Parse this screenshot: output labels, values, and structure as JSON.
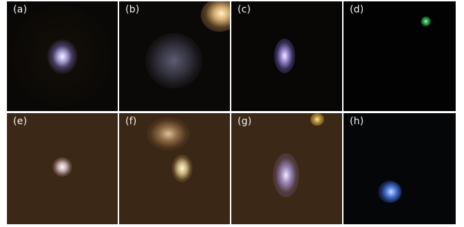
{
  "panels": [
    {
      "id": "a",
      "label": "(a)",
      "background": "#0a0806",
      "sources": [
        {
          "shape": "compact-bluish-white"
        }
      ]
    },
    {
      "id": "b",
      "label": "(b)",
      "background": "#0b0907",
      "sources": [
        {
          "shape": "diffuse-gray-blue"
        },
        {
          "shape": "yellow-white-neighbor"
        }
      ]
    },
    {
      "id": "c",
      "label": "(c)",
      "background": "#090705",
      "sources": [
        {
          "shape": "elongated-violet-white"
        }
      ]
    },
    {
      "id": "d",
      "label": "(d)",
      "background": "#020202",
      "sources": [
        {
          "shape": "faint-green-dot"
        }
      ]
    },
    {
      "id": "e",
      "label": "(e)",
      "background": "#3c2816",
      "sources": [
        {
          "shape": "compact-white"
        }
      ]
    },
    {
      "id": "f",
      "label": "(f)",
      "background": "#3b2715",
      "sources": [
        {
          "shape": "diffuse-orange"
        },
        {
          "shape": "compact-white-yellow"
        }
      ]
    },
    {
      "id": "g",
      "label": "(g)",
      "background": "#3b2816",
      "sources": [
        {
          "shape": "elongated-violet-white"
        },
        {
          "shape": "yellow-dot"
        }
      ]
    },
    {
      "id": "h",
      "label": "(h)",
      "background": "#050608",
      "sources": [
        {
          "shape": "compact-blue"
        }
      ]
    }
  ]
}
